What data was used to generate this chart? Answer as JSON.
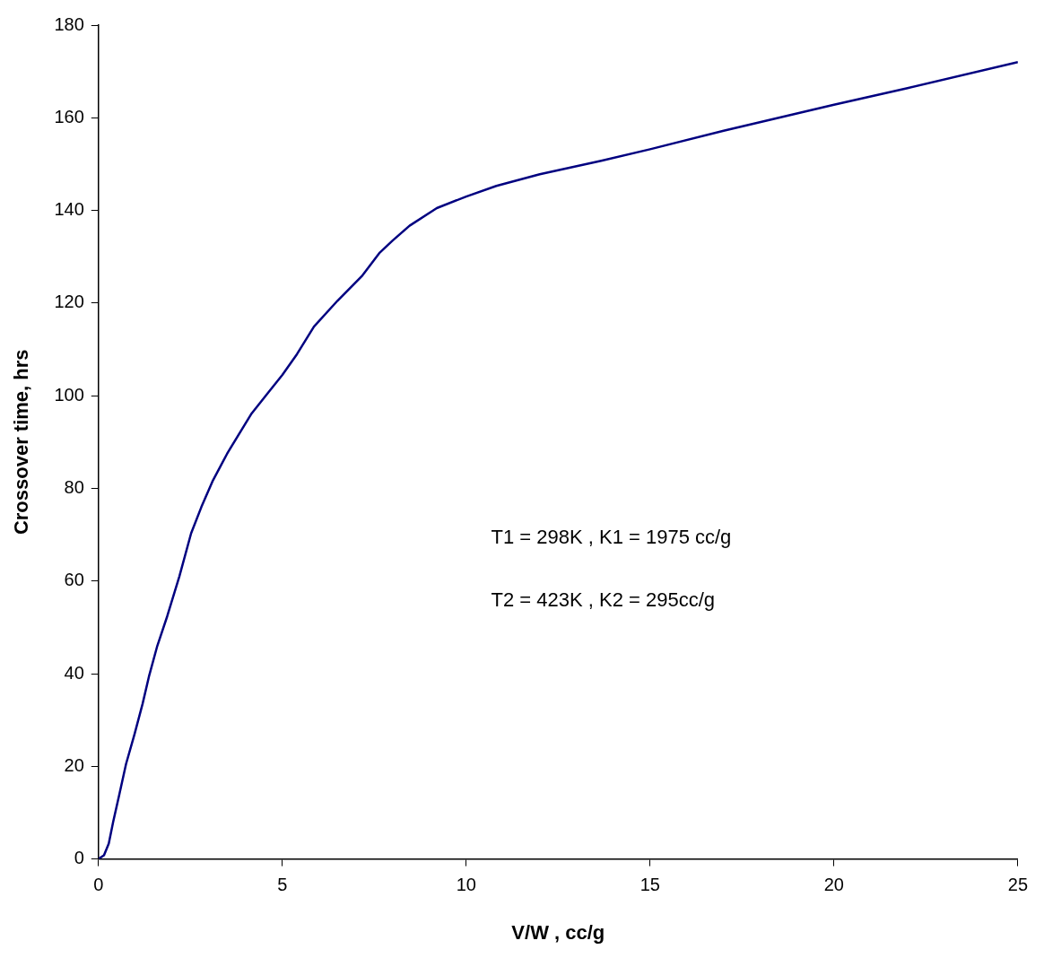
{
  "chart_data": {
    "type": "line",
    "xlabel": "V/W , cc/g",
    "ylabel": "Crossover time, hrs",
    "x": [
      0,
      0.15,
      0.28,
      0.4,
      0.57,
      0.75,
      0.98,
      1.2,
      1.38,
      1.6,
      1.87,
      2.2,
      2.52,
      2.8,
      3.1,
      3.5,
      4.15,
      4.6,
      5,
      5.4,
      5.86,
      6.5,
      7.16,
      7.65,
      8.0,
      8.46,
      9.2,
      10,
      10.82,
      12,
      13.67,
      15,
      17,
      20,
      22,
      25
    ],
    "series": [
      {
        "color": "#000080",
        "values": [
          0,
          0.8,
          3.3,
          8,
          14,
          20.5,
          26.9,
          33.5,
          39.6,
          46,
          52.4,
          61,
          70.3,
          76,
          81.5,
          87.5,
          96,
          100.5,
          104.5,
          109,
          114.9,
          120.5,
          125.8,
          130.9,
          133.5,
          136.7,
          140.5,
          143,
          145.3,
          147.8,
          150.7,
          153.2,
          157.2,
          162.8,
          166.4,
          172
        ]
      }
    ],
    "xlim": [
      0,
      25
    ],
    "xticks": [
      0,
      5,
      10,
      15,
      20,
      25
    ],
    "ylim": [
      0,
      180
    ],
    "yticks": [
      0,
      20,
      40,
      60,
      80,
      100,
      120,
      140,
      160,
      180
    ],
    "grid": false,
    "legend": false,
    "marker": "none",
    "line_style": "solid",
    "annotations": [
      "T1 = 298K , K1 = 1975 cc/g",
      "T2 = 423K , K2 = 295cc/g"
    ]
  }
}
